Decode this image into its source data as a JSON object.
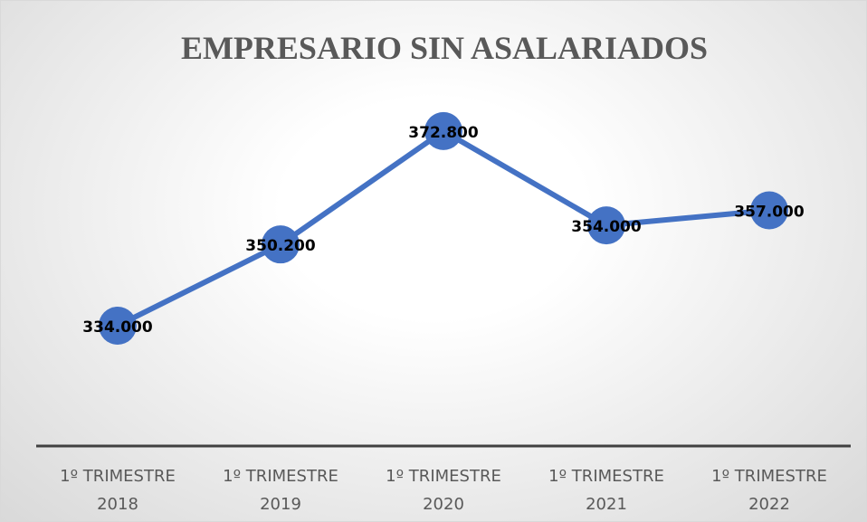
{
  "chart_data": {
    "type": "line",
    "title": "EMPRESARIO SIN ASALARIADOS",
    "categories": [
      "1º TRIMESTRE 2018",
      "1º TRIMESTRE 2019",
      "1º TRIMESTRE 2020",
      "1º TRIMESTRE 2021",
      "1º TRIMESTRE 2022"
    ],
    "series": [
      {
        "name": "EMPRESARIO SIN ASALARIADOS",
        "color": "#4472c4",
        "values": [
          334000,
          350200,
          372800,
          354000,
          357000
        ],
        "value_labels": [
          "334.000",
          "350.200",
          "372.800",
          "354.000",
          "357.000"
        ]
      }
    ],
    "ylim": [
      310000,
      380000
    ]
  }
}
